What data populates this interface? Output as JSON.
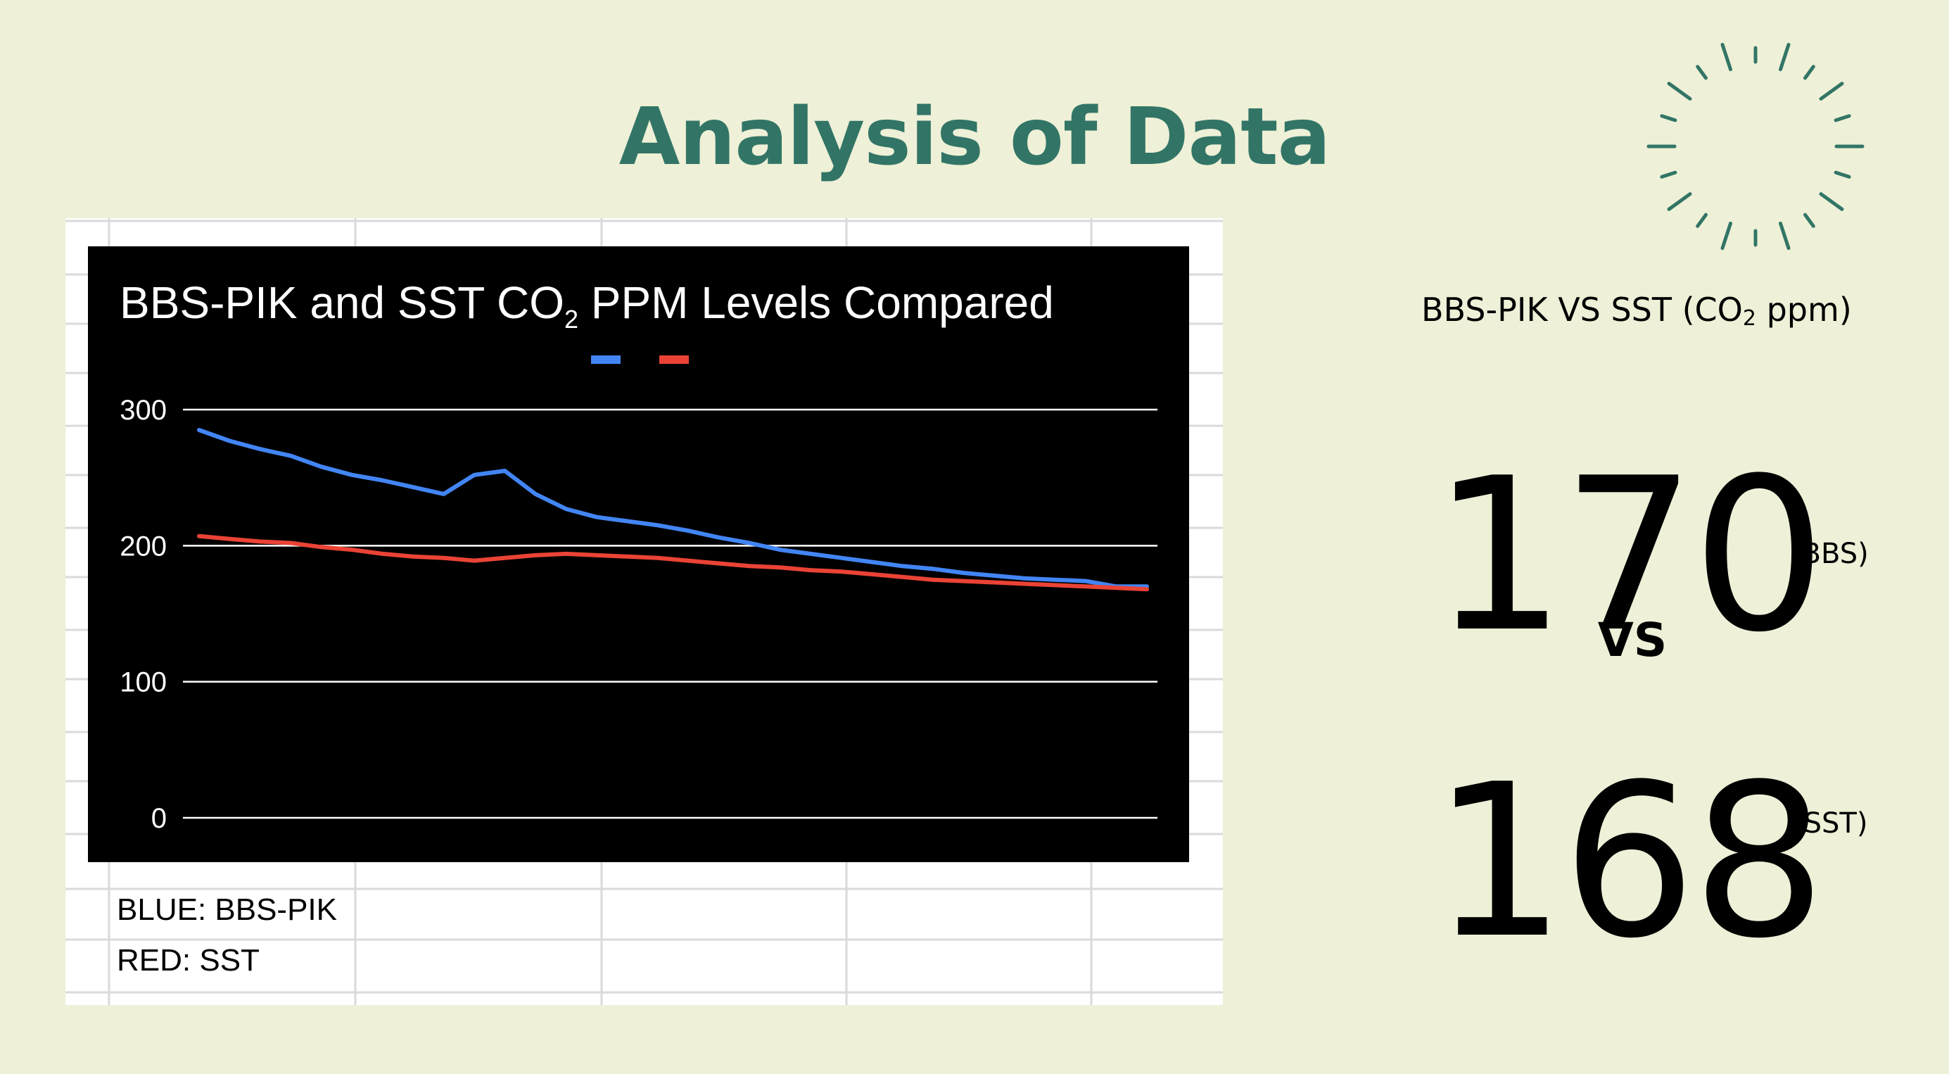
{
  "slide": {
    "title": "Analysis of Data",
    "colors": {
      "background": "#eef0d7",
      "title": "#327566",
      "accent_sunburst": "#327566"
    },
    "decoration_icon": "sunburst-icon"
  },
  "sheet": {
    "notes": [
      "BLUE: BBS-PIK",
      "RED: SST"
    ]
  },
  "chart_data": {
    "type": "line",
    "title_main": "BBS-PIK and SST CO",
    "title_sub": "2",
    "title_end": " PPM Levels Compared",
    "ylim": [
      0,
      300
    ],
    "yticks": [
      "0",
      "100",
      "200",
      "300"
    ],
    "grid": true,
    "legend_position": "top",
    "x": [
      1,
      2,
      3,
      4,
      5,
      6,
      7,
      8,
      9,
      10,
      11,
      12,
      13,
      14,
      15,
      16,
      17,
      18,
      19,
      20,
      21,
      22,
      23,
      24,
      25,
      26,
      27,
      28,
      29,
      30,
      31,
      32
    ],
    "series": [
      {
        "color": "#4285f4",
        "values": [
          285,
          277,
          271,
          266,
          258,
          252,
          248,
          243,
          238,
          252,
          255,
          238,
          227,
          221,
          218,
          215,
          211,
          206,
          202,
          197,
          194,
          191,
          188,
          185,
          183,
          180,
          178,
          176,
          175,
          174,
          170,
          170
        ]
      },
      {
        "color": "#ea4335",
        "values": [
          207,
          205,
          203,
          202,
          199,
          197,
          194,
          192,
          191,
          189,
          191,
          193,
          194,
          193,
          192,
          191,
          189,
          187,
          185,
          184,
          182,
          181,
          179,
          177,
          175,
          174,
          173,
          172,
          171,
          170,
          169,
          168
        ]
      }
    ]
  },
  "comparison": {
    "label_main": "BBS-PIK VS SST (CO",
    "label_sub": "2",
    "label_end": " ppm)",
    "value_a": "170",
    "tag_a": "(BBS)",
    "vs": "VS",
    "value_b": "168",
    "tag_b": "(SST)"
  }
}
